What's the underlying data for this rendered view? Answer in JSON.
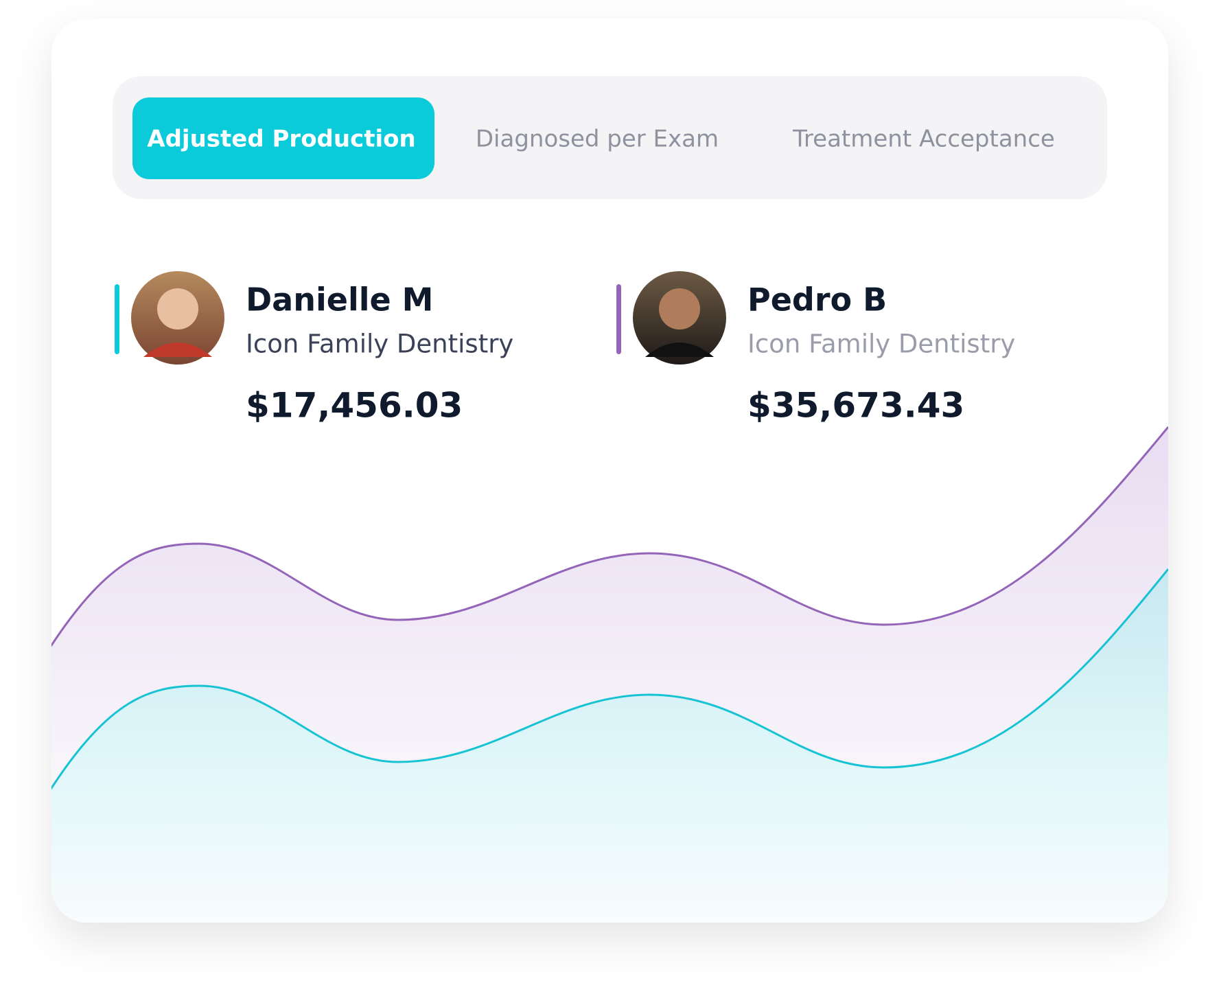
{
  "tabs": [
    {
      "label": "Adjusted Production",
      "active": true
    },
    {
      "label": "Diagnosed per Exam",
      "active": false
    },
    {
      "label": "Treatment Acceptance",
      "active": false
    }
  ],
  "people": [
    {
      "name": "Danielle M",
      "practice": "Icon Family Dentistry",
      "amount": "$17,456.03",
      "color": "#0bcbdb"
    },
    {
      "name": "Pedro B",
      "practice": "Icon Family Dentistry",
      "amount": "$35,673.43",
      "color": "#9364b8"
    }
  ]
}
